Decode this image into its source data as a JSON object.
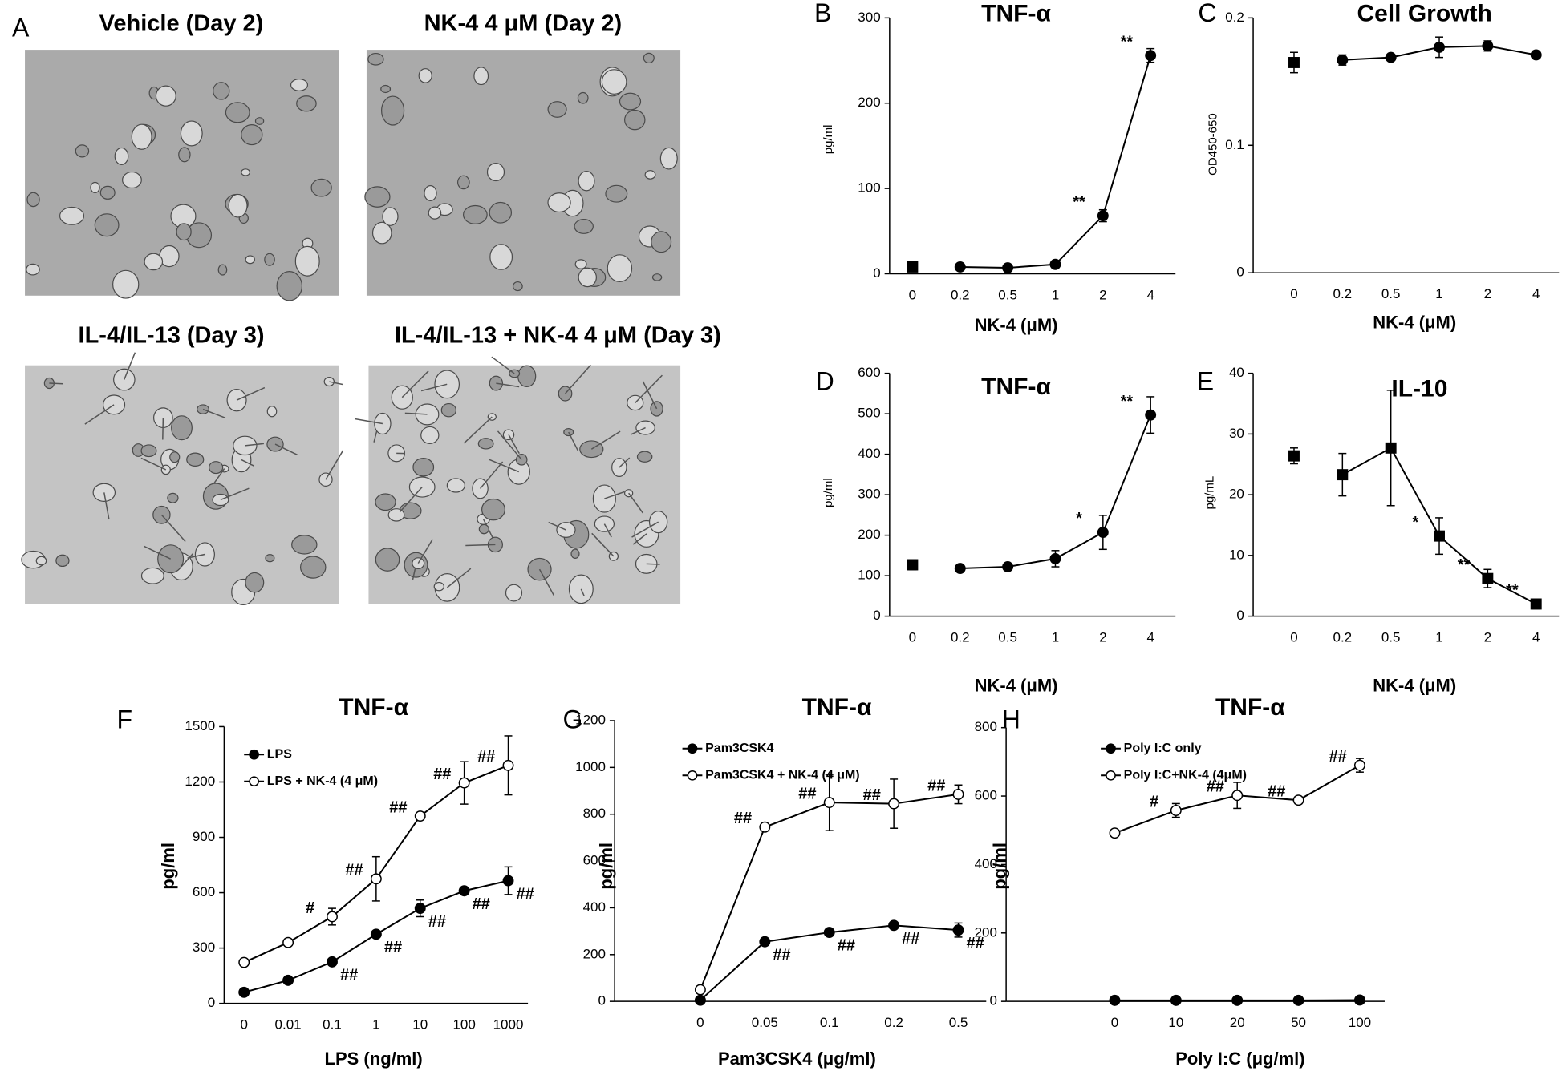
{
  "micrographs": {
    "panel": "A",
    "images": [
      {
        "title": "Vehicle (Day 2)"
      },
      {
        "title": "NK-4 4 μM (Day 2)"
      },
      {
        "title": "IL-4/IL-13 (Day 3)"
      },
      {
        "title": "IL-4/IL-13 + NK-4 4 μM (Day 3)"
      }
    ]
  },
  "chart_data": [
    {
      "panel": "B",
      "type": "line",
      "title": "TNF-α",
      "xlabel": "NK-4 (μM)",
      "ylabel": "pg/ml",
      "categories": [
        "0",
        "0.2",
        "0.5",
        "1",
        "2",
        "4"
      ],
      "ylim": [
        0,
        300
      ],
      "yticks": [
        0,
        100,
        200,
        300
      ],
      "series": [
        {
          "color": "#000000",
          "marker": "square",
          "marker_fill": "#000000",
          "values": [
            8,
            null,
            null,
            null,
            null,
            null
          ],
          "errors": [
            2,
            null,
            null,
            null,
            null,
            null
          ]
        },
        {
          "color": "#000000",
          "marker": "circle",
          "marker_fill": "#000000",
          "values": [
            null,
            8,
            7,
            11,
            68,
            256
          ],
          "errors": [
            null,
            1,
            1,
            2,
            7,
            8
          ],
          "annotations": [
            null,
            null,
            null,
            null,
            "**",
            "**"
          ]
        }
      ]
    },
    {
      "panel": "C",
      "type": "line",
      "title": "Cell Growth",
      "xlabel": "NK-4 (μM)",
      "ylabel": "OD450-650",
      "categories": [
        "0",
        "0.2",
        "0.5",
        "1",
        "2",
        "4"
      ],
      "ylim": [
        0,
        0.2
      ],
      "yticks": [
        0,
        0.1,
        0.2
      ],
      "series": [
        {
          "color": "#000000",
          "marker": "square",
          "marker_fill": "#000000",
          "values": [
            0.165,
            null,
            null,
            null,
            null,
            null
          ],
          "errors": [
            0.008,
            null,
            null,
            null,
            null,
            null
          ]
        },
        {
          "color": "#000000",
          "marker": "circle",
          "marker_fill": "#000000",
          "values": [
            null,
            0.167,
            0.169,
            0.177,
            0.178,
            0.171
          ],
          "errors": [
            null,
            0.004,
            0.002,
            0.008,
            0.004,
            0.003
          ]
        }
      ]
    },
    {
      "panel": "D",
      "type": "line",
      "title": "TNF-α",
      "xlabel": "NK-4 (μM)",
      "ylabel": "pg/ml",
      "categories": [
        "0",
        "0.2",
        "0.5",
        "1",
        "2",
        "4"
      ],
      "ylim": [
        0,
        600
      ],
      "yticks": [
        0,
        100,
        200,
        300,
        400,
        500,
        600
      ],
      "series": [
        {
          "color": "#000000",
          "marker": "square",
          "marker_fill": "#000000",
          "values": [
            127,
            null,
            null,
            null,
            null,
            null
          ],
          "errors": [
            12,
            null,
            null,
            null,
            null,
            null
          ]
        },
        {
          "color": "#000000",
          "marker": "circle",
          "marker_fill": "#000000",
          "values": [
            null,
            118,
            122,
            142,
            207,
            497
          ],
          "errors": [
            null,
            4,
            5,
            20,
            42,
            45
          ],
          "annotations": [
            null,
            null,
            null,
            null,
            "*",
            "**"
          ]
        }
      ]
    },
    {
      "panel": "E",
      "type": "line",
      "title": "IL-10",
      "xlabel": "NK-4 (μM)",
      "ylabel": "pg/mL",
      "categories": [
        "0",
        "0.2",
        "0.5",
        "1",
        "2",
        "4"
      ],
      "ylim": [
        0,
        40
      ],
      "yticks": [
        0,
        10,
        20,
        30,
        40
      ],
      "series": [
        {
          "color": "#000000",
          "marker": "square",
          "marker_fill": "#000000",
          "values": [
            26.4,
            null,
            null,
            null,
            null,
            null
          ],
          "errors": [
            1.3,
            null,
            null,
            null,
            null,
            null
          ]
        },
        {
          "color": "#000000",
          "marker": "square",
          "marker_fill": "#000000",
          "values": [
            null,
            23.3,
            27.7,
            13.2,
            6.2,
            2
          ],
          "errors": [
            null,
            3.5,
            9.5,
            3,
            1.5,
            0.8
          ],
          "annotations": [
            null,
            null,
            null,
            "*",
            "**",
            "**"
          ]
        }
      ]
    },
    {
      "panel": "F",
      "type": "line",
      "title": "TNF-α",
      "xlabel": "LPS (ng/ml)",
      "ylabel": "pg/ml",
      "categories": [
        "0",
        "0.01",
        "0.1",
        "1",
        "10",
        "100",
        "1000"
      ],
      "ylim": [
        0,
        1500
      ],
      "yticks": [
        0,
        300,
        600,
        900,
        1200,
        1500
      ],
      "series": [
        {
          "name": "LPS",
          "color": "#000000",
          "marker": "circle",
          "marker_fill": "#000000",
          "values": [
            60,
            125,
            225,
            375,
            515,
            610,
            665
          ],
          "errors": [
            5,
            5,
            10,
            15,
            45,
            15,
            75
          ],
          "annotations": [
            null,
            null,
            "##",
            "##",
            "##",
            "##",
            "##"
          ]
        },
        {
          "name": "LPS + NK-4 (4 μM)",
          "color": "#000000",
          "marker": "circle",
          "marker_fill": "#ffffff",
          "values": [
            222,
            330,
            470,
            675,
            1015,
            1195,
            1290
          ],
          "errors": [
            5,
            10,
            45,
            120,
            10,
            115,
            160
          ],
          "annotations": [
            null,
            null,
            "#",
            "##",
            "##",
            "##",
            "##"
          ]
        }
      ]
    },
    {
      "panel": "G",
      "type": "line",
      "title": "TNF-α",
      "xlabel": "Pam3CSK4 (μg/ml)",
      "ylabel": "pg/ml",
      "categories": [
        "0",
        "0.05",
        "0.1",
        "0.2",
        "0.5"
      ],
      "ylim": [
        0,
        1200
      ],
      "yticks": [
        0,
        200,
        400,
        600,
        800,
        1000,
        1200
      ],
      "series": [
        {
          "name": "Pam3CSK4",
          "color": "#000000",
          "marker": "circle",
          "marker_fill": "#000000",
          "values": [
            5,
            255,
            295,
            325,
            305
          ],
          "errors": [
            2,
            15,
            10,
            10,
            30
          ],
          "annotations": [
            null,
            "##",
            "##",
            "##",
            "##"
          ]
        },
        {
          "name": "Pam3CSK4 + NK-4 (4 μM)",
          "color": "#000000",
          "marker": "circle",
          "marker_fill": "#ffffff",
          "values": [
            50,
            745,
            850,
            845,
            885
          ],
          "errors": [
            3,
            5,
            120,
            105,
            40
          ],
          "annotations": [
            null,
            "##",
            "##",
            "##",
            "##"
          ]
        }
      ]
    },
    {
      "panel": "H",
      "type": "line",
      "title": "TNF-α",
      "xlabel": "Poly I:C (μg/ml)",
      "ylabel": "pg/ml",
      "categories": [
        "0",
        "10",
        "20",
        "50",
        "100"
      ],
      "ylim": [
        0,
        800
      ],
      "yticks": [
        0,
        200,
        400,
        600,
        800
      ],
      "series": [
        {
          "name": "Poly I:C only",
          "color": "#000000",
          "marker": "circle",
          "marker_fill": "#000000",
          "values": [
            3,
            3,
            3,
            3,
            4
          ],
          "errors": [
            1,
            1,
            1,
            1,
            1
          ]
        },
        {
          "name": "Poly I:C+NK-4 (4μM)",
          "color": "#000000",
          "marker": "circle",
          "marker_fill": "#ffffff",
          "values": [
            492,
            558,
            602,
            588,
            690
          ],
          "errors": [
            5,
            20,
            38,
            10,
            20
          ],
          "annotations": [
            null,
            "#",
            "##",
            "##",
            "##"
          ]
        }
      ]
    }
  ]
}
